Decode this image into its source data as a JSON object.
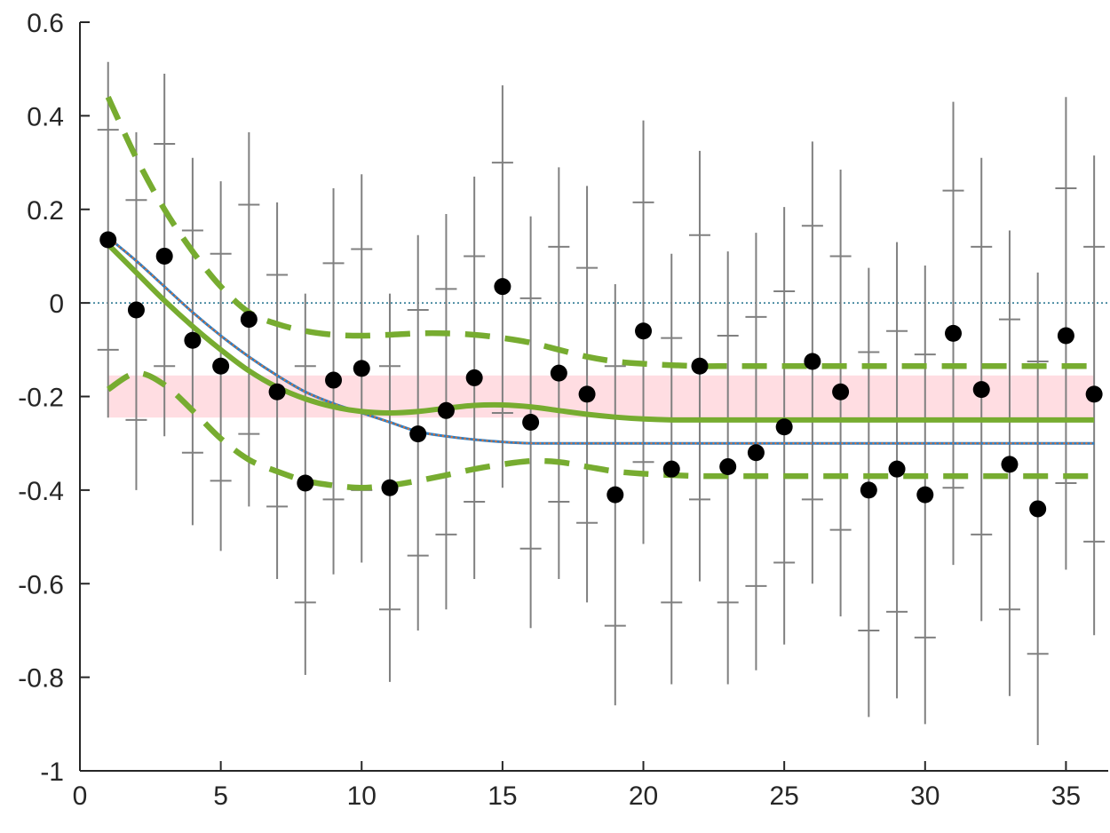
{
  "chart_data": {
    "type": "scatter",
    "title": "",
    "xlabel": "",
    "ylabel": "",
    "xlim": [
      0,
      36.5
    ],
    "ylim": [
      -1,
      0.6
    ],
    "xticks": [
      0,
      5,
      10,
      15,
      20,
      25,
      30,
      35
    ],
    "yticks": [
      -1,
      -0.8,
      -0.6,
      -0.4,
      -0.2,
      0,
      0.2,
      0.4,
      0.6
    ],
    "grid": false,
    "legend": "none",
    "reference_line": {
      "y": 0,
      "color": "#1f6f8b"
    },
    "shaded_band": {
      "x": [
        1,
        36
      ],
      "y": [
        -0.245,
        -0.155
      ],
      "color": "#ffdde2"
    },
    "points": {
      "x": [
        1,
        2,
        3,
        4,
        5,
        6,
        7,
        8,
        9,
        10,
        11,
        12,
        13,
        14,
        15,
        16,
        17,
        18,
        19,
        20,
        21,
        22,
        23,
        24,
        25,
        26,
        27,
        28,
        29,
        30,
        31,
        32,
        33,
        34,
        35,
        36
      ],
      "y": [
        0.135,
        -0.015,
        0.1,
        -0.08,
        -0.135,
        -0.035,
        -0.19,
        -0.385,
        -0.165,
        -0.14,
        -0.395,
        -0.28,
        -0.23,
        -0.16,
        0.035,
        -0.255,
        -0.15,
        -0.195,
        -0.41,
        -0.06,
        -0.355,
        -0.135,
        -0.35,
        -0.32,
        -0.265,
        -0.125,
        -0.19,
        -0.4,
        -0.355,
        -0.41,
        -0.065,
        -0.185,
        -0.345,
        -0.44,
        -0.07,
        -0.195
      ],
      "err_low": [
        -0.245,
        -0.4,
        -0.285,
        -0.475,
        -0.53,
        -0.435,
        -0.59,
        -0.795,
        -0.58,
        -0.555,
        -0.81,
        -0.7,
        -0.655,
        -0.59,
        -0.395,
        -0.695,
        -0.59,
        -0.64,
        -0.86,
        -0.515,
        -0.815,
        -0.595,
        -0.815,
        -0.785,
        -0.73,
        -0.6,
        -0.67,
        -0.885,
        -0.845,
        -0.9,
        -0.56,
        -0.68,
        -0.84,
        -0.945,
        -0.57,
        -0.71
      ],
      "err_high": [
        0.515,
        0.365,
        0.49,
        0.31,
        0.26,
        0.365,
        0.215,
        0.02,
        0.245,
        0.275,
        0.02,
        0.145,
        0.19,
        0.27,
        0.465,
        0.185,
        0.29,
        0.25,
        0.04,
        0.39,
        0.105,
        0.325,
        0.11,
        0.15,
        0.205,
        0.345,
        0.285,
        0.075,
        0.13,
        0.08,
        0.43,
        0.31,
        0.155,
        0.065,
        0.44,
        0.315
      ],
      "inner_low": [
        -0.1,
        -0.25,
        -0.135,
        -0.32,
        -0.38,
        -0.28,
        -0.435,
        -0.64,
        -0.42,
        -0.4,
        -0.655,
        -0.54,
        -0.495,
        -0.425,
        -0.235,
        -0.525,
        -0.425,
        -0.47,
        -0.69,
        -0.34,
        -0.64,
        -0.42,
        -0.64,
        -0.605,
        -0.555,
        -0.42,
        -0.485,
        -0.7,
        -0.66,
        -0.715,
        -0.395,
        -0.495,
        -0.655,
        -0.75,
        -0.385,
        -0.51
      ],
      "inner_high": [
        0.37,
        0.22,
        0.34,
        0.155,
        0.105,
        0.21,
        0.06,
        -0.135,
        0.085,
        0.115,
        -0.135,
        -0.015,
        0.03,
        0.1,
        0.3,
        0.01,
        0.12,
        0.075,
        -0.135,
        0.215,
        -0.075,
        0.145,
        -0.07,
        -0.03,
        0.025,
        0.165,
        0.1,
        -0.105,
        -0.06,
        -0.11,
        0.24,
        0.12,
        -0.035,
        -0.125,
        0.245,
        0.12
      ],
      "color": "#000000",
      "errorbar_color": "#808080"
    },
    "series": [
      {
        "style": "solid-thin",
        "color": "#2f7ec2",
        "x": [
          1,
          2,
          3,
          4,
          5,
          6,
          7,
          8,
          9,
          10,
          11,
          12,
          13,
          14,
          15,
          16,
          17,
          18,
          19,
          20,
          21,
          22,
          23,
          24,
          25,
          26,
          27,
          28,
          29,
          30,
          31,
          32,
          33,
          34,
          35,
          36
        ],
        "y": [
          0.14,
          0.09,
          0.035,
          -0.02,
          -0.07,
          -0.115,
          -0.155,
          -0.19,
          -0.215,
          -0.235,
          -0.255,
          -0.275,
          -0.285,
          -0.292,
          -0.297,
          -0.3,
          -0.3,
          -0.3,
          -0.3,
          -0.3,
          -0.3,
          -0.3,
          -0.3,
          -0.3,
          -0.3,
          -0.3,
          -0.3,
          -0.3,
          -0.3,
          -0.3,
          -0.3,
          -0.3,
          -0.3,
          -0.3,
          -0.3,
          -0.3
        ]
      },
      {
        "style": "dotted-overlay",
        "color": "#e8702a",
        "x": [
          1,
          2,
          3,
          4,
          5,
          6,
          7,
          8,
          9,
          10,
          11,
          12,
          13,
          14,
          15,
          16,
          17,
          18,
          19,
          20,
          21,
          22,
          23,
          24,
          25,
          26,
          27,
          28,
          29,
          30,
          31,
          32,
          33,
          34,
          35,
          36
        ],
        "y": [
          0.14,
          0.09,
          0.035,
          -0.02,
          -0.07,
          -0.115,
          -0.155,
          -0.19,
          -0.215,
          -0.235,
          -0.255,
          -0.275,
          -0.285,
          -0.292,
          -0.297,
          -0.3,
          -0.3,
          -0.3,
          -0.3,
          -0.3,
          -0.3,
          -0.3,
          -0.3,
          -0.3,
          -0.3,
          -0.3,
          -0.3,
          -0.3,
          -0.3,
          -0.3,
          -0.3,
          -0.3,
          -0.3,
          -0.3,
          -0.3,
          -0.3
        ]
      },
      {
        "style": "solid-thick",
        "color": "#77ac30",
        "x": [
          1,
          2,
          3,
          4,
          5,
          6,
          7,
          8,
          9,
          10,
          11,
          12,
          13,
          14,
          15,
          16,
          17,
          18,
          19,
          20,
          21,
          22,
          23,
          24,
          25,
          26,
          27,
          28,
          29,
          30,
          31,
          32,
          33,
          34,
          35,
          36
        ],
        "y": [
          0.125,
          0.065,
          0.005,
          -0.05,
          -0.1,
          -0.145,
          -0.18,
          -0.205,
          -0.222,
          -0.232,
          -0.235,
          -0.232,
          -0.225,
          -0.219,
          -0.218,
          -0.222,
          -0.23,
          -0.238,
          -0.244,
          -0.248,
          -0.25,
          -0.25,
          -0.25,
          -0.25,
          -0.25,
          -0.25,
          -0.25,
          -0.25,
          -0.25,
          -0.25,
          -0.25,
          -0.25,
          -0.25,
          -0.25,
          -0.25,
          -0.25
        ]
      },
      {
        "style": "dashed-thick",
        "color": "#77ac30",
        "x": [
          1,
          2,
          3,
          4,
          5,
          6,
          7,
          8,
          9,
          10,
          11,
          12,
          13,
          14,
          15,
          16,
          17,
          18,
          19,
          20,
          21,
          22,
          23,
          24,
          25,
          26,
          27,
          28,
          29,
          30,
          31,
          32,
          33,
          34,
          35,
          36
        ],
        "y": [
          0.44,
          0.31,
          0.2,
          0.11,
          0.035,
          -0.02,
          -0.045,
          -0.06,
          -0.068,
          -0.07,
          -0.068,
          -0.065,
          -0.065,
          -0.068,
          -0.075,
          -0.085,
          -0.1,
          -0.115,
          -0.125,
          -0.13,
          -0.133,
          -0.135,
          -0.135,
          -0.135,
          -0.135,
          -0.135,
          -0.135,
          -0.135,
          -0.135,
          -0.135,
          -0.135,
          -0.135,
          -0.135,
          -0.135,
          -0.135,
          -0.135
        ]
      },
      {
        "style": "dashed-thick",
        "color": "#77ac30",
        "x": [
          1,
          2,
          3,
          4,
          5,
          6,
          7,
          8,
          9,
          10,
          11,
          12,
          13,
          14,
          15,
          16,
          17,
          18,
          19,
          20,
          21,
          22,
          23,
          24,
          25,
          26,
          27,
          28,
          29,
          30,
          31,
          32,
          33,
          34,
          35,
          36
        ],
        "y": [
          -0.185,
          -0.15,
          -0.175,
          -0.23,
          -0.29,
          -0.335,
          -0.36,
          -0.38,
          -0.39,
          -0.395,
          -0.39,
          -0.38,
          -0.368,
          -0.355,
          -0.345,
          -0.338,
          -0.34,
          -0.35,
          -0.36,
          -0.365,
          -0.368,
          -0.37,
          -0.37,
          -0.37,
          -0.37,
          -0.37,
          -0.37,
          -0.37,
          -0.37,
          -0.37,
          -0.37,
          -0.37,
          -0.37,
          -0.37,
          -0.37,
          -0.37
        ]
      }
    ]
  }
}
